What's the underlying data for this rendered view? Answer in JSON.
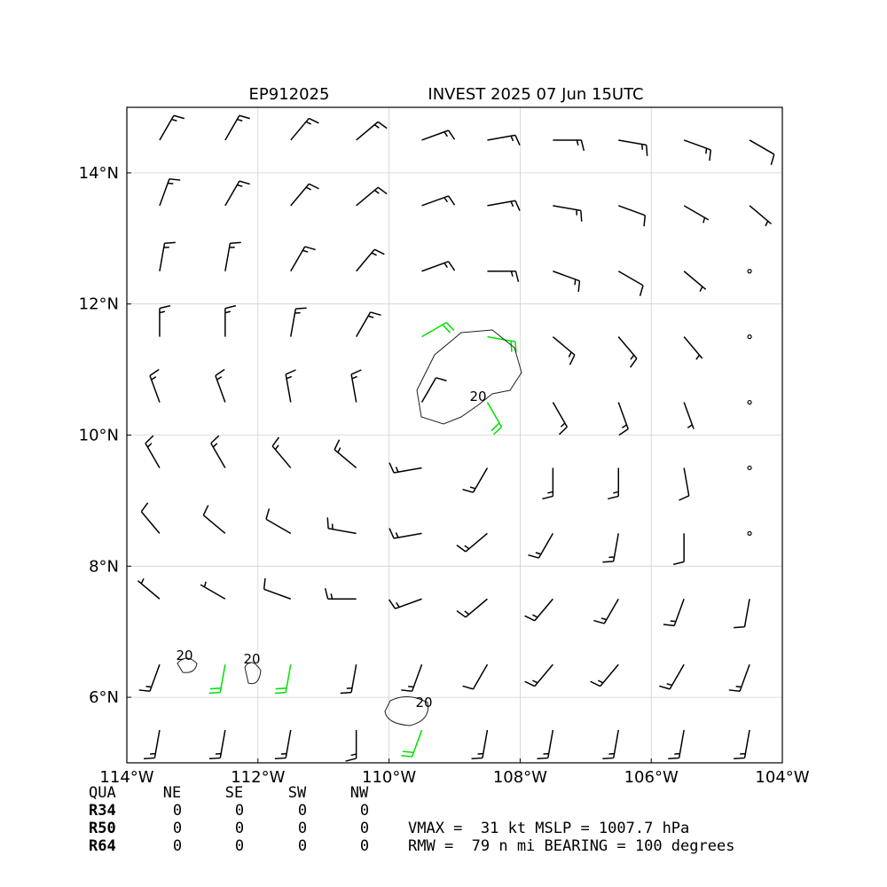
{
  "title_left": "EP912025",
  "title": "INVEST 2025 07 Jun 15UTC",
  "map": {
    "xlim": [
      -114,
      -104
    ],
    "ylim": [
      5,
      15
    ],
    "xticks": [
      {
        "value": -114,
        "label": "114°W"
      },
      {
        "value": -112,
        "label": "112°W"
      },
      {
        "value": -110,
        "label": "110°W"
      },
      {
        "value": -108,
        "label": "108°W"
      },
      {
        "value": -106,
        "label": "106°W"
      },
      {
        "value": -104,
        "label": "104°W"
      }
    ],
    "yticks": [
      {
        "value": 6,
        "label": "6°N"
      },
      {
        "value": 8,
        "label": "8°N"
      },
      {
        "value": 10,
        "label": "10°N"
      },
      {
        "value": 12,
        "label": "12°N"
      },
      {
        "value": 14,
        "label": "14°N"
      }
    ],
    "grid": true,
    "barb_color": "#000000",
    "strong_barb_color": "#00e000",
    "strong_min_kt": 20,
    "contour_level": 20,
    "wind": {
      "lon": [
        -113.5,
        -112.5,
        -111.5,
        -110.5,
        -109.5,
        -108.5,
        -107.5,
        -106.5,
        -105.5,
        -104.5
      ],
      "lat": [
        14.5,
        13.5,
        12.5,
        11.5,
        10.5,
        9.5,
        8.5,
        7.5,
        6.5,
        5.5
      ],
      "dir": [
        [
          30,
          30,
          40,
          50,
          70,
          80,
          90,
          100,
          110,
          120
        ],
        [
          20,
          30,
          40,
          50,
          70,
          80,
          100,
          110,
          120,
          130
        ],
        [
          10,
          10,
          30,
          40,
          70,
          90,
          110,
          120,
          130,
          140
        ],
        [
          0,
          0,
          10,
          30,
          60,
          100,
          130,
          140,
          140,
          150
        ],
        [
          340,
          340,
          350,
          350,
          30,
          150,
          150,
          160,
          160,
          160
        ],
        [
          330,
          330,
          320,
          310,
          260,
          210,
          180,
          180,
          170,
          170
        ],
        [
          320,
          310,
          300,
          280,
          260,
          230,
          210,
          190,
          180,
          180
        ],
        [
          310,
          300,
          290,
          270,
          250,
          230,
          220,
          210,
          200,
          190
        ],
        [
          200,
          190,
          190,
          190,
          200,
          210,
          220,
          220,
          210,
          200
        ],
        [
          190,
          190,
          190,
          180,
          200,
          190,
          190,
          190,
          190,
          190
        ]
      ],
      "speed": [
        [
          15,
          15,
          15,
          15,
          15,
          15,
          15,
          15,
          15,
          10
        ],
        [
          15,
          15,
          15,
          15,
          15,
          15,
          15,
          10,
          5,
          5
        ],
        [
          15,
          15,
          15,
          15,
          15,
          15,
          15,
          10,
          5,
          0
        ],
        [
          15,
          15,
          15,
          15,
          20,
          20,
          15,
          15,
          5,
          0
        ],
        [
          15,
          15,
          15,
          15,
          10,
          20,
          15,
          15,
          5,
          0
        ],
        [
          15,
          15,
          15,
          15,
          15,
          15,
          15,
          15,
          10,
          0
        ],
        [
          10,
          10,
          10,
          15,
          15,
          15,
          15,
          15,
          10,
          0
        ],
        [
          5,
          5,
          10,
          15,
          15,
          15,
          15,
          15,
          15,
          10
        ],
        [
          15,
          20,
          20,
          15,
          15,
          10,
          15,
          15,
          15,
          15
        ],
        [
          15,
          15,
          15,
          15,
          20,
          15,
          15,
          15,
          15,
          15
        ]
      ]
    }
  },
  "table": {
    "header": [
      "QUA",
      "NE",
      "SE",
      "SW",
      "NW"
    ],
    "rows": [
      [
        "R34",
        "0",
        "0",
        "0",
        "0"
      ],
      [
        "R50",
        "0",
        "0",
        "0",
        "0"
      ],
      [
        "R64",
        "0",
        "0",
        "0",
        "0"
      ]
    ]
  },
  "summary": [
    "VMAX =  31 kt MSLP = 1007.7 hPa",
    "RMW =  79 n mi BEARING = 100 degrees"
  ]
}
